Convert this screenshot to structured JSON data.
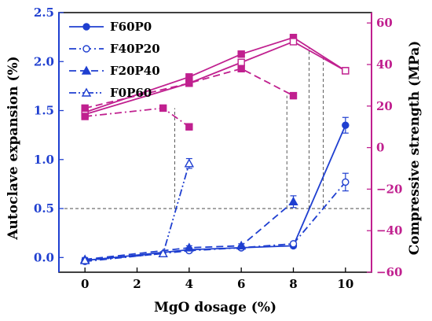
{
  "chart_data": {
    "type": "line",
    "title": "",
    "xlabel": "MgO dosage (%)",
    "ylabel_left": "Autoclave expansion (%)",
    "ylabel_right": "Compressive strength (MPa)",
    "xlim": [
      -1,
      11
    ],
    "ylim_left": [
      -0.15,
      2.5
    ],
    "ylim_right": [
      -60,
      65
    ],
    "x_ticks": [
      0,
      2,
      4,
      6,
      8,
      10
    ],
    "x_tick_labels": [
      "0",
      "2",
      "4",
      "6",
      "8",
      "10"
    ],
    "y_left_ticks": [
      0.0,
      0.5,
      1.0,
      1.5,
      2.0,
      2.5
    ],
    "y_left_tick_labels": [
      "0.0",
      "0.5",
      "1.0",
      "1.5",
      "2.0",
      "2.5"
    ],
    "y_right_ticks": [
      -60,
      -40,
      -20,
      0,
      20,
      40,
      60
    ],
    "y_right_tick_labels": [
      "−60",
      "−40",
      "−20",
      "0",
      "20",
      "40",
      "60"
    ],
    "legend_position": "top-left",
    "colors": {
      "expansion": "#1f3fd0",
      "strength": "#c0208f",
      "guide": "#333333"
    },
    "expansion_series": [
      {
        "name": "F60P0",
        "marker": "circle-filled",
        "dash": "solid",
        "x": [
          0,
          4,
          6,
          8,
          10
        ],
        "y": [
          -0.03,
          0.08,
          0.1,
          0.12,
          1.35
        ],
        "err": [
          0.02,
          0.02,
          0.02,
          0.02,
          0.08
        ]
      },
      {
        "name": "F40P20",
        "marker": "circle-open",
        "dash": "dashdot",
        "x": [
          0,
          4,
          6,
          8,
          10
        ],
        "y": [
          -0.04,
          0.07,
          0.1,
          0.14,
          0.77
        ],
        "err": [
          0.02,
          0.02,
          0.02,
          0.02,
          0.09
        ]
      },
      {
        "name": "F20P40",
        "marker": "triangle-filled",
        "dash": "dash",
        "x": [
          0,
          4,
          6,
          8
        ],
        "y": [
          -0.02,
          0.1,
          0.12,
          0.57
        ],
        "err": [
          0.02,
          0.02,
          0.02,
          0.06
        ]
      },
      {
        "name": "F0P60",
        "marker": "triangle-open",
        "dash": "dashdotdot",
        "x": [
          0,
          3,
          4
        ],
        "y": [
          -0.03,
          0.04,
          0.96
        ],
        "err": [
          0.02,
          0.02,
          0.05
        ]
      }
    ],
    "strength_series": [
      {
        "name": "F60P0",
        "marker": "square-filled",
        "dash": "solid",
        "x": [
          0,
          4,
          6,
          8,
          10
        ],
        "y": [
          17,
          34,
          45,
          53,
          37
        ],
        "err": [
          1.5,
          1.5,
          1.5,
          1.5,
          1.5
        ]
      },
      {
        "name": "F40P20",
        "marker": "square-open",
        "dash": "solid",
        "x": [
          0,
          4,
          6,
          8,
          10
        ],
        "y": [
          16,
          31,
          41,
          51,
          37
        ],
        "err": [
          1.5,
          1.5,
          1.5,
          1.5,
          1.5
        ]
      },
      {
        "name": "F20P40",
        "marker": "square-filled",
        "dash": "dash",
        "x": [
          0,
          4,
          6,
          8
        ],
        "y": [
          19,
          31,
          38,
          25
        ],
        "err": [
          1.5,
          1.5,
          1.5,
          1.5
        ]
      },
      {
        "name": "F0P60",
        "marker": "square-filled",
        "dash": "dashdot",
        "x": [
          0,
          3,
          4
        ],
        "y": [
          15,
          19,
          10
        ],
        "err": [
          1.5,
          1.5,
          1.5
        ]
      }
    ],
    "guide_lines": {
      "horizontal_y": 0.5,
      "horizontal_x_range": [
        -1,
        11
      ],
      "verticals": [
        {
          "x": 3.45,
          "expansion": 0.5,
          "strength": 19
        },
        {
          "x": 7.75,
          "expansion": 0.5,
          "strength": 25
        },
        {
          "x": 8.6,
          "expansion": 0.5,
          "strength": 48
        },
        {
          "x": 9.15,
          "expansion": 0.5,
          "strength": 45
        }
      ]
    }
  }
}
